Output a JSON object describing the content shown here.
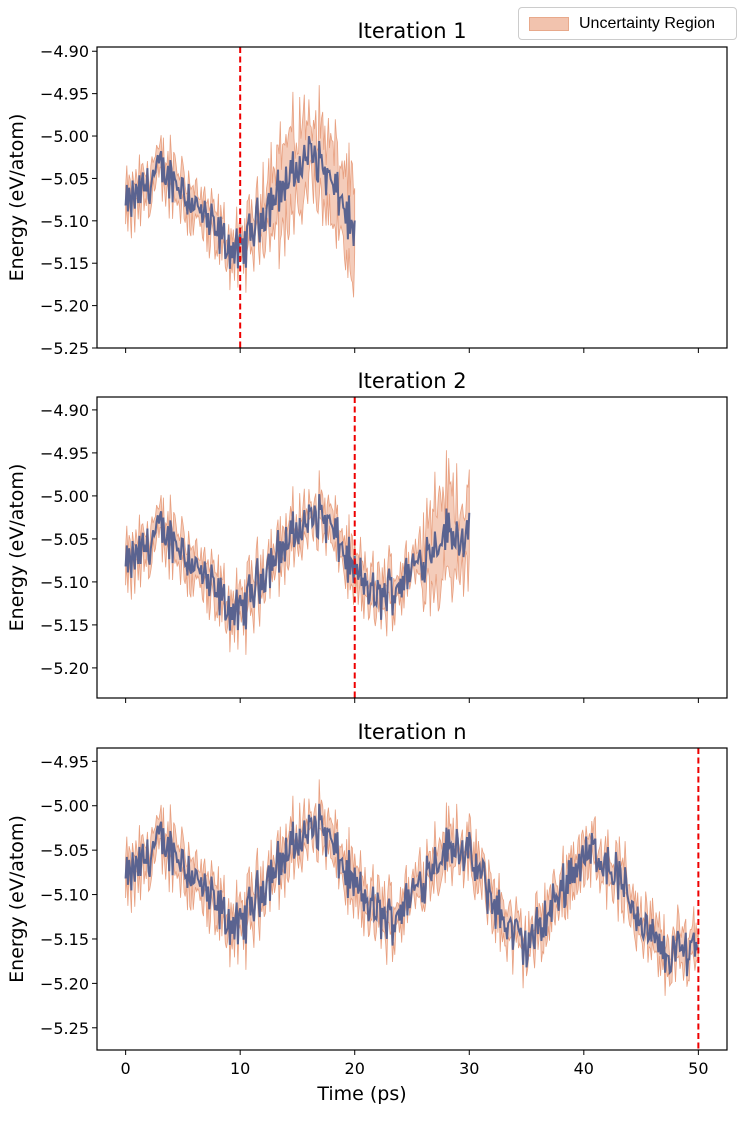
{
  "legend": {
    "label": "Uncertainty Region"
  },
  "colors": {
    "line": "#5a6390",
    "band_fill": "#f2c3ae",
    "band_edge": "#e8a080",
    "vline": "#ee0000"
  },
  "chart_data": [
    {
      "type": "line",
      "title": "Iteration 1",
      "xlabel": "",
      "ylabel": "Energy (eV/atom)",
      "xlim": [
        -2.5,
        52.5
      ],
      "ylim": [
        -5.25,
        -4.895
      ],
      "xticks": [
        0,
        10,
        20,
        30,
        40,
        50
      ],
      "yticks": [
        -4.9,
        -4.95,
        -5.0,
        -5.05,
        -5.1,
        -5.15,
        -5.2,
        -5.25
      ],
      "ytick_labels": [
        "−4.90",
        "−4.95",
        "−5.00",
        "−5.05",
        "−5.10",
        "−5.15",
        "−5.20",
        "−5.25"
      ],
      "show_xtick_labels": false,
      "x_end": 20,
      "vline_x": 10,
      "band_scale": 1.0,
      "band_boost_from": 12,
      "series": [
        {
          "name": "Energy",
          "knots": [
            [
              0,
              -5.085
            ],
            [
              1,
              -5.07
            ],
            [
              3,
              -5.04
            ],
            [
              5,
              -5.06
            ],
            [
              7,
              -5.1
            ],
            [
              9,
              -5.13
            ],
            [
              10,
              -5.14
            ],
            [
              11,
              -5.11
            ],
            [
              13,
              -5.07
            ],
            [
              15,
              -5.04
            ],
            [
              16,
              -5.02
            ],
            [
              17,
              -5.03
            ],
            [
              18,
              -5.06
            ],
            [
              19,
              -5.08
            ],
            [
              20,
              -5.12
            ]
          ]
        }
      ]
    },
    {
      "type": "line",
      "title": "Iteration 2",
      "xlabel": "",
      "ylabel": "Energy (eV/atom)",
      "xlim": [
        -2.5,
        52.5
      ],
      "ylim": [
        -5.235,
        -4.885
      ],
      "xticks": [
        0,
        10,
        20,
        30,
        40,
        50
      ],
      "yticks": [
        -4.9,
        -4.95,
        -5.0,
        -5.05,
        -5.1,
        -5.15,
        -5.2
      ],
      "ytick_labels": [
        "−4.90",
        "−4.95",
        "−5.00",
        "−5.05",
        "−5.10",
        "−5.15",
        "−5.20"
      ],
      "show_xtick_labels": false,
      "x_end": 30,
      "vline_x": 20,
      "band_scale": 1.0,
      "band_boost_from": 26,
      "series": [
        {
          "name": "Energy",
          "knots": [
            [
              0,
              -5.085
            ],
            [
              1,
              -5.07
            ],
            [
              3,
              -5.04
            ],
            [
              5,
              -5.06
            ],
            [
              7,
              -5.1
            ],
            [
              9,
              -5.13
            ],
            [
              10,
              -5.14
            ],
            [
              11,
              -5.11
            ],
            [
              13,
              -5.07
            ],
            [
              15,
              -5.04
            ],
            [
              17,
              -5.02
            ],
            [
              18,
              -5.04
            ],
            [
              20,
              -5.09
            ],
            [
              22,
              -5.12
            ],
            [
              24,
              -5.1
            ],
            [
              26,
              -5.07
            ],
            [
              28,
              -5.04
            ],
            [
              30,
              -5.05
            ]
          ]
        }
      ]
    },
    {
      "type": "line",
      "title": "Iteration n",
      "xlabel": "Time (ps)",
      "ylabel": "Energy (eV/atom)",
      "xlim": [
        -2.5,
        52.5
      ],
      "ylim": [
        -5.275,
        -4.935
      ],
      "xticks": [
        0,
        10,
        20,
        30,
        40,
        50
      ],
      "yticks": [
        -4.95,
        -5.0,
        -5.05,
        -5.1,
        -5.15,
        -5.2,
        -5.25
      ],
      "ytick_labels": [
        "−4.95",
        "−5.00",
        "−5.05",
        "−5.10",
        "−5.15",
        "−5.20",
        "−5.25"
      ],
      "show_xtick_labels": true,
      "x_end": 50,
      "vline_x": 50,
      "band_scale": 1.0,
      "band_boost_from": 99,
      "series": [
        {
          "name": "Energy",
          "knots": [
            [
              0,
              -5.085
            ],
            [
              1,
              -5.07
            ],
            [
              3,
              -5.04
            ],
            [
              5,
              -5.06
            ],
            [
              7,
              -5.1
            ],
            [
              9,
              -5.13
            ],
            [
              10,
              -5.14
            ],
            [
              11,
              -5.11
            ],
            [
              13,
              -5.07
            ],
            [
              15,
              -5.04
            ],
            [
              17,
              -5.02
            ],
            [
              19,
              -5.07
            ],
            [
              21,
              -5.11
            ],
            [
              23,
              -5.13
            ],
            [
              25,
              -5.1
            ],
            [
              27,
              -5.06
            ],
            [
              29,
              -5.04
            ],
            [
              31,
              -5.08
            ],
            [
              33,
              -5.13
            ],
            [
              35,
              -5.16
            ],
            [
              37,
              -5.12
            ],
            [
              39,
              -5.07
            ],
            [
              41,
              -5.05
            ],
            [
              43,
              -5.08
            ],
            [
              45,
              -5.13
            ],
            [
              47,
              -5.17
            ],
            [
              49,
              -5.16
            ],
            [
              50,
              -5.15
            ]
          ]
        }
      ]
    }
  ]
}
